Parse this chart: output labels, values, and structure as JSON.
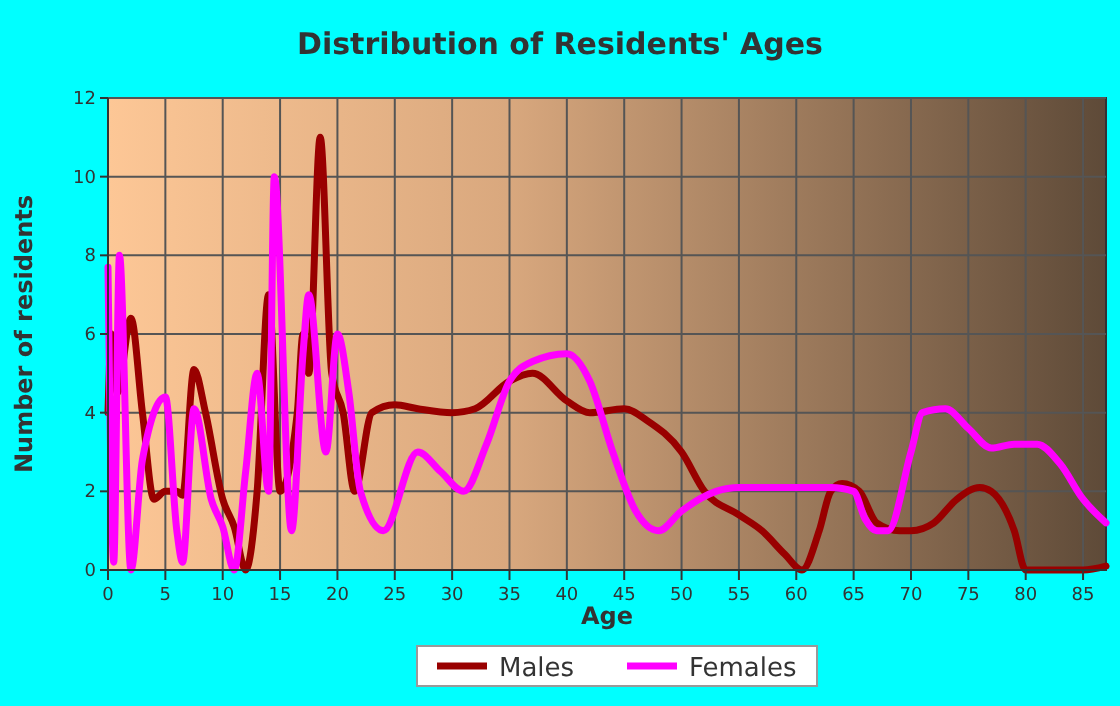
{
  "chart_data": {
    "type": "line",
    "title": "Distribution of Residents' Ages",
    "xlabel": "Age",
    "ylabel": "Number of residents",
    "xlim": [
      0,
      87
    ],
    "ylim": [
      0,
      12
    ],
    "xticks": [
      0,
      5,
      10,
      15,
      20,
      25,
      30,
      35,
      40,
      45,
      50,
      55,
      60,
      65,
      70,
      75,
      80,
      85
    ],
    "yticks": [
      0,
      2,
      4,
      6,
      8,
      10,
      12
    ],
    "grid": true,
    "legend": "bottom",
    "marker": "none",
    "line_style": "solid",
    "series": [
      {
        "name": "Males",
        "color": "#990000",
        "x": [
          0,
          0.3,
          0.8,
          2,
          3,
          4,
          5,
          6,
          6.5,
          7.5,
          8.5,
          10,
          11,
          12,
          13,
          14,
          15,
          16.5,
          17,
          17.5,
          18.5,
          19.5,
          20.5,
          21.5,
          23,
          25,
          27,
          30,
          32,
          35,
          37,
          40,
          42,
          45,
          47,
          50,
          52,
          55,
          57,
          59,
          60.5,
          62,
          63,
          64,
          65.5,
          67,
          69,
          70,
          72,
          74,
          76,
          77,
          79,
          80,
          82,
          85,
          87
        ],
        "values": [
          4,
          6,
          4.5,
          6.4,
          4,
          1.8,
          2,
          2,
          1.9,
          5.1,
          4,
          1.8,
          1.1,
          0,
          2,
          7,
          2,
          4,
          6,
          5,
          11,
          5,
          4,
          2,
          4,
          4.2,
          4.1,
          4,
          4.1,
          4.8,
          5,
          4.3,
          4,
          4.1,
          3.8,
          3,
          2,
          1.4,
          1,
          0.4,
          0,
          1,
          2,
          2.2,
          2,
          1.2,
          1,
          1,
          1.2,
          1.8,
          2.1,
          2,
          1,
          0,
          0,
          0,
          0.1
        ]
      },
      {
        "name": "Females",
        "color": "#ff00ff",
        "x": [
          0,
          0.5,
          1,
          2,
          3,
          5,
          6,
          6.5,
          7.5,
          9,
          10,
          11,
          12,
          13,
          14,
          14.5,
          16,
          17,
          17.5,
          19,
          20,
          21,
          22,
          24,
          27,
          29,
          31,
          33,
          35,
          37,
          40,
          42,
          44,
          46,
          48,
          50,
          53,
          55,
          60,
          63,
          65,
          66,
          67,
          68,
          70,
          71,
          73,
          75,
          77,
          79,
          81,
          83,
          85,
          87
        ],
        "values": [
          7.7,
          0.2,
          8,
          0,
          2.8,
          4.4,
          1,
          0.2,
          4.1,
          1.8,
          1.1,
          0,
          2.5,
          5,
          2,
          10,
          1,
          5.5,
          7,
          3,
          6,
          4.5,
          2,
          1,
          3,
          2.5,
          2,
          3.2,
          4.8,
          5.3,
          5.5,
          4.8,
          3,
          1.5,
          1,
          1.5,
          2,
          2.1,
          2.1,
          2.1,
          2,
          1.3,
          1,
          1,
          3,
          4,
          4.1,
          3.6,
          3.1,
          3.2,
          3.2,
          2.7,
          1.8,
          1.2
        ]
      }
    ]
  }
}
